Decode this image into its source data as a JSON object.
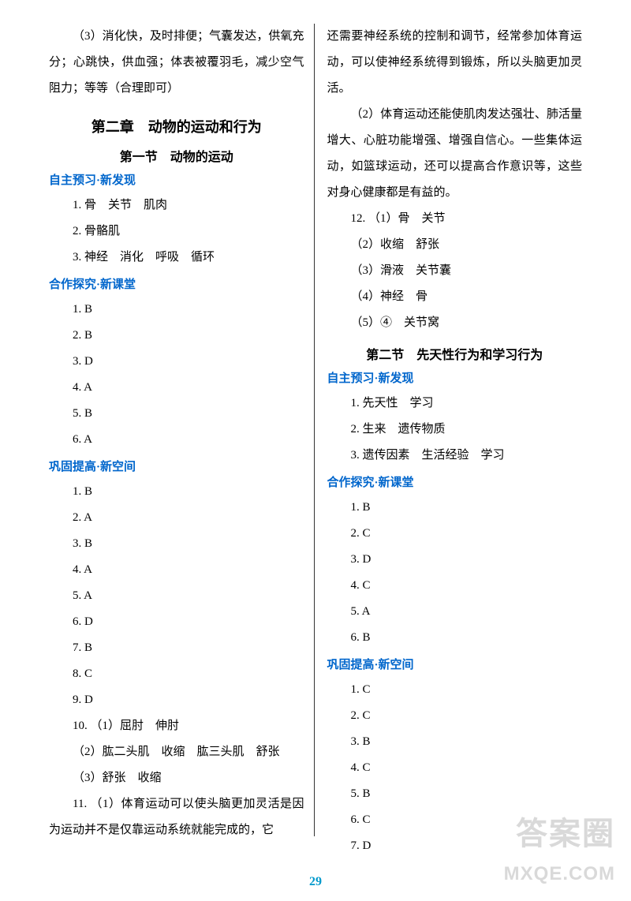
{
  "left": {
    "p1": "（3）消化快，及时排便；气囊发达，供氧充分；心跳快，供血强；体表被覆羽毛，减少空气阻力；等等（合理即可）",
    "chapter": "第二章　动物的运动和行为",
    "section1": "第一节　动物的运动",
    "h1": "自主预习·新发现",
    "h1_items": [
      "1. 骨　关节　肌肉",
      "2. 骨骼肌",
      "3. 神经　消化　呼吸　循环"
    ],
    "h2": "合作探究·新课堂",
    "h2_items": [
      "1. B",
      "2. B",
      "3. D",
      "4. A",
      "5. B",
      "6. A"
    ],
    "h3": "巩固提高·新空间",
    "h3_items": [
      "1. B",
      "2. A",
      "3. B",
      "4. A",
      "5. A",
      "6. D",
      "7. B",
      "8. C",
      "9. D",
      "10. （1）屈肘　伸肘",
      "（2）肱二头肌　收缩　肱三头肌　舒张",
      "（3）舒张　收缩",
      "11. （1）体育运动可以使头脑更加灵活是因为运动并不是仅靠运动系统就能完成的，它"
    ]
  },
  "right": {
    "p1": "还需要神经系统的控制和调节，经常参加体育运动，可以使神经系统得到锻炼，所以头脑更加灵活。",
    "p2": "（2）体育运动还能使肌肉发达强壮、肺活量增大、心脏功能增强、增强自信心。一些集体运动，如篮球运动，还可以提高合作意识等，这些对身心健康都是有益的。",
    "q12": [
      "12. （1）骨　关节",
      "（2）收缩　舒张",
      "（3）滑液　关节囊",
      "（4）神经　骨",
      "（5）④　关节窝"
    ],
    "section2": "第二节　先天性行为和学习行为",
    "h1": "自主预习·新发现",
    "h1_items": [
      "1. 先天性　学习",
      "2. 生来　遗传物质",
      "3. 遗传因素　生活经验　学习"
    ],
    "h2": "合作探究·新课堂",
    "h2_items": [
      "1. B",
      "2. C",
      "3. D",
      "4. C",
      "5. A",
      "6. B"
    ],
    "h3": "巩固提高·新空间",
    "h3_items": [
      "1. C",
      "2. C",
      "3. B",
      "4. C",
      "5. B",
      "6. C",
      "7. D"
    ]
  },
  "page_number": "29",
  "watermark1": "答案圈",
  "watermark2": "MXQE.COM"
}
